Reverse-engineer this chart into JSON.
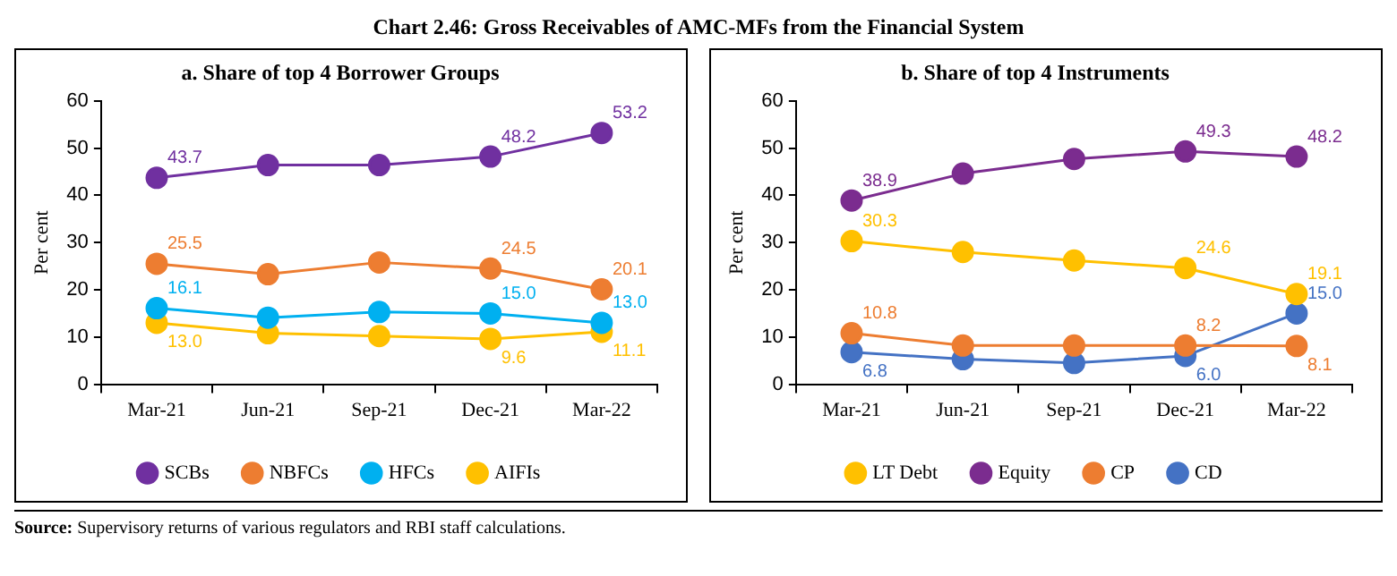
{
  "chart_data": [
    {
      "type": "other",
      "title": "Chart 2.46: Gross Receivables of AMC-MFs from the Financial System",
      "annotations": [
        "Source: Supervisory returns of various regulators and RBI staff calculations."
      ]
    },
    {
      "type": "line",
      "title": "a. Share of top 4 Borrower Groups",
      "ylabel": "Per cent",
      "categories": [
        "Mar-21",
        "Jun-21",
        "Sep-21",
        "Dec-21",
        "Mar-22"
      ],
      "ylim": [
        0,
        60
      ],
      "yticks": [
        0,
        10,
        20,
        30,
        40,
        50,
        60
      ],
      "grid": false,
      "legend": "bottom",
      "marker": "circle",
      "series": [
        {
          "name": "SCBs",
          "color": "#7030a0",
          "values": [
            43.7,
            46.4,
            46.4,
            48.2,
            53.2
          ],
          "value_labels": [
            "43.7",
            null,
            null,
            "48.2",
            "53.2"
          ]
        },
        {
          "name": "NBFCs",
          "color": "#ed7d31",
          "values": [
            25.5,
            23.3,
            25.8,
            24.5,
            20.1
          ],
          "value_labels": [
            "25.5",
            null,
            null,
            "24.5",
            "20.1"
          ]
        },
        {
          "name": "HFCs",
          "color": "#00b0f0",
          "values": [
            16.1,
            14.1,
            15.3,
            15.0,
            13.0
          ],
          "value_labels": [
            "16.1",
            null,
            null,
            "15.0",
            "13.0"
          ]
        },
        {
          "name": "AIFIs",
          "color": "#ffc000",
          "values": [
            13.0,
            10.8,
            10.2,
            9.6,
            11.1
          ],
          "value_labels": [
            "13.0",
            null,
            null,
            "9.6",
            "11.1"
          ]
        }
      ]
    },
    {
      "type": "line",
      "title": "b. Share of top 4 Instruments",
      "ylabel": "Per cent",
      "categories": [
        "Mar-21",
        "Jun-21",
        "Sep-21",
        "Dec-21",
        "Mar-22"
      ],
      "ylim": [
        0,
        60
      ],
      "yticks": [
        0,
        10,
        20,
        30,
        40,
        50,
        60
      ],
      "grid": false,
      "legend": "bottom",
      "marker": "circle",
      "series": [
        {
          "name": "LT Debt",
          "color": "#ffc000",
          "values": [
            30.3,
            28.0,
            26.2,
            24.6,
            19.1
          ],
          "value_labels": [
            "30.3",
            null,
            null,
            "24.6",
            "19.1"
          ]
        },
        {
          "name": "Equity",
          "color": "#7b2c8f",
          "values": [
            38.9,
            44.6,
            47.7,
            49.3,
            48.2
          ],
          "value_labels": [
            "38.9",
            null,
            null,
            "49.3",
            "48.2"
          ]
        },
        {
          "name": "CP",
          "color": "#ed7d31",
          "values": [
            10.8,
            8.2,
            8.2,
            8.2,
            8.1
          ],
          "value_labels": [
            "10.8",
            null,
            null,
            "8.2",
            "8.1"
          ]
        },
        {
          "name": "CD",
          "color": "#4472c4",
          "values": [
            6.8,
            5.3,
            4.5,
            6.0,
            15.0
          ],
          "value_labels": [
            "6.8",
            null,
            null,
            "6.0",
            "15.0"
          ]
        }
      ]
    }
  ]
}
